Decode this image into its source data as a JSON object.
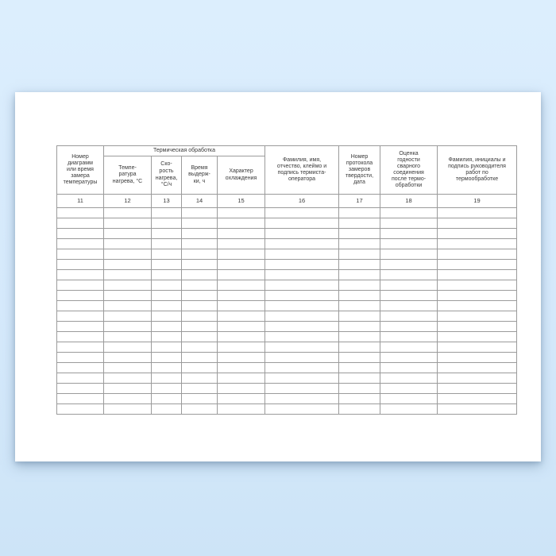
{
  "table": {
    "group_header": "Термическая обработка",
    "headers": {
      "col11": "Номер\nдиаграмм\nили время\nзамера\nтемпературы",
      "col12": "Темпе-\nратура\nнагрева, °С",
      "col13": "Ско-\nрость\nнагрева,\n°С/ч",
      "col14": "Время\nвыдерж-\nки, ч",
      "col15": "Характер\nохлаждения",
      "col16": "Фамилия, имя,\nотчество, клеймо и\nподпись термиста-\nоператора",
      "col17": "Номер\nпротокола\nзамеров\nтвердости,\nдата",
      "col18": "Оценка\nгодности\nсварного\nсоединения\nпосле термо-\nобработки",
      "col19": "Фамилия, инициалы и\nподпись руководителя\nработ по\nтермообработке"
    },
    "column_numbers": [
      "11",
      "12",
      "13",
      "14",
      "15",
      "16",
      "17",
      "18",
      "19"
    ],
    "empty_row_count": 20,
    "empty_cell_value": ""
  },
  "colors": {
    "background_top": "#dceefd",
    "background_bottom": "#cde4f7",
    "page": "#ffffff",
    "border_inner": "#9b9b9b",
    "border_outer": "#707070",
    "text": "#3a3a3a"
  }
}
